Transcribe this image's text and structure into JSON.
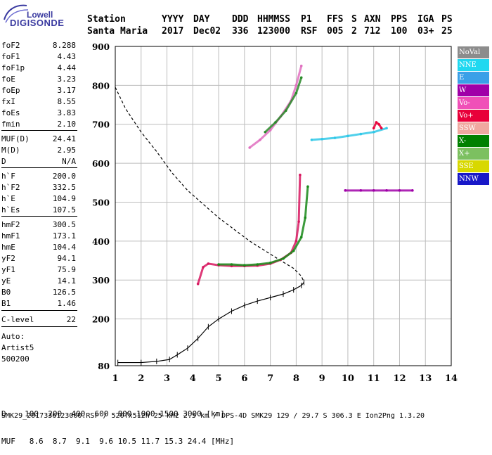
{
  "logo": {
    "brand_top": "Lowell",
    "brand_main": "DIGISONDE"
  },
  "header": {
    "labels": [
      "Station",
      "YYYY",
      "DAY",
      "DDD",
      "HHMMSS",
      "P1",
      "FFS",
      "S",
      "AXN",
      "PPS",
      "IGA",
      "PS"
    ],
    "values": [
      "Santa Maria",
      "2017",
      "Dec02",
      "336",
      "123000",
      "RSF",
      "005",
      "2",
      "712",
      "100",
      "03+",
      "25"
    ]
  },
  "params": [
    {
      "k": "foF2",
      "v": "8.288"
    },
    {
      "k": "foF1",
      "v": "4.43"
    },
    {
      "k": "foF1p",
      "v": "4.44"
    },
    {
      "k": "foE",
      "v": "3.23"
    },
    {
      "k": "foEp",
      "v": "3.17"
    },
    {
      "k": "fxI",
      "v": "8.55"
    },
    {
      "k": "foEs",
      "v": "3.83"
    },
    {
      "k": "fmin",
      "v": "2.10"
    },
    {
      "k": "MUF(D)",
      "v": "24.41"
    },
    {
      "k": "M(D)",
      "v": "2.95"
    },
    {
      "k": "D",
      "v": "N/A"
    },
    {
      "k": "h`F",
      "v": "200.0"
    },
    {
      "k": "h`F2",
      "v": "332.5"
    },
    {
      "k": "h`E",
      "v": "104.9"
    },
    {
      "k": "h`Es",
      "v": "107.5"
    },
    {
      "k": "hmF2",
      "v": "300.5"
    },
    {
      "k": "hmF1",
      "v": "173.1"
    },
    {
      "k": "hmE",
      "v": "104.4"
    },
    {
      "k": "yF2",
      "v": "94.1"
    },
    {
      "k": "yF1",
      "v": "75.9"
    },
    {
      "k": "yE",
      "v": "14.1"
    },
    {
      "k": "B0",
      "v": "126.5"
    },
    {
      "k": "B1",
      "v": "1.46"
    },
    {
      "k": "C-level",
      "v": "22"
    },
    {
      "k": "Auto:",
      "v": ""
    },
    {
      "k": "Artist5",
      "v": ""
    },
    {
      "k": "500200",
      "v": ""
    }
  ],
  "legend": [
    {
      "label": "NoVal",
      "color": "#8c8c8c"
    },
    {
      "label": "NNE",
      "color": "#20d8f0"
    },
    {
      "label": "E",
      "color": "#3aa0e8"
    },
    {
      "label": "W",
      "color": "#a000a8"
    },
    {
      "label": "Vo-",
      "color": "#f050b8"
    },
    {
      "label": "Vo+",
      "color": "#e8003a"
    },
    {
      "label": "SSW",
      "color": "#f0a8a0"
    },
    {
      "label": "X-",
      "color": "#008000"
    },
    {
      "label": "X+",
      "color": "#7cc060"
    },
    {
      "label": "SSE",
      "color": "#d8d800"
    },
    {
      "label": "NNW",
      "color": "#1818c8"
    }
  ],
  "bottom": {
    "d_row": "D    100  200  400  600  800 1000 1500 3000 [km]",
    "muf_row": "MUF   8.6  8.7  9.1  9.6 10.5 11.7 15.3 24.4 [MHz]"
  },
  "footer": "SMK29_2017336123000.RSF / 520fx512h 25 kHz 2.5 km / DPS-4D SMK29 129 / 29.7 S 306.3 E Ion2Png 1.3.20",
  "chart_data": {
    "type": "scatter",
    "xlim": [
      1,
      14
    ],
    "ylim": [
      80,
      900
    ],
    "x_ticks": [
      "1",
      "2",
      "3",
      "4",
      "5",
      "6",
      "7",
      "8",
      "9",
      "10",
      "11",
      "12",
      "13",
      "14"
    ],
    "y_ticks": [
      "80",
      "200",
      "300",
      "400",
      "500",
      "600",
      "700",
      "800",
      "900"
    ],
    "xlabel": "",
    "ylabel": "",
    "series": [
      {
        "color": "#000000",
        "style": "solid",
        "x": [
          1.1,
          2.0,
          2.6,
          3.1,
          3.4,
          3.8,
          4.2,
          4.6,
          5.0,
          5.5,
          6.0,
          6.5,
          7.0,
          7.5,
          7.9,
          8.2,
          8.3
        ],
        "y": [
          88,
          88,
          91,
          96,
          108,
          125,
          150,
          180,
          200,
          220,
          235,
          246,
          255,
          264,
          275,
          286,
          294
        ]
      },
      {
        "color": "#000000",
        "style": "dashed",
        "x": [
          1.0,
          1.4,
          2.0,
          2.6,
          3.2,
          3.8,
          4.4,
          5.0,
          5.6,
          6.2,
          6.8,
          7.4,
          7.9,
          8.2,
          8.3
        ],
        "y": [
          795,
          740,
          680,
          630,
          575,
          530,
          495,
          460,
          430,
          400,
          375,
          350,
          330,
          310,
          295
        ]
      },
      {
        "color": "#d81860",
        "style": "trace",
        "x": [
          4.2,
          4.4,
          4.6,
          5.0,
          5.5,
          6.0,
          6.5,
          7.0,
          7.4,
          7.8,
          8.0,
          8.1,
          8.15
        ],
        "y": [
          290,
          333,
          342,
          338,
          336,
          336,
          337,
          342,
          352,
          370,
          400,
          450,
          570
        ]
      },
      {
        "color": "#1a8a1a",
        "style": "trace",
        "x": [
          5.0,
          5.5,
          6.0,
          6.5,
          7.0,
          7.5,
          7.9,
          8.2,
          8.35,
          8.45
        ],
        "y": [
          340,
          340,
          338,
          340,
          344,
          355,
          375,
          410,
          460,
          540
        ]
      },
      {
        "color": "#e070c0",
        "style": "trace",
        "x": [
          6.2,
          6.6,
          7.0,
          7.4,
          7.8,
          8.0,
          8.2
        ],
        "y": [
          640,
          660,
          685,
          720,
          760,
          800,
          850
        ]
      },
      {
        "color": "#2a8a2a",
        "style": "trace",
        "x": [
          6.8,
          7.2,
          7.6,
          8.0,
          8.2
        ],
        "y": [
          680,
          705,
          735,
          780,
          820
        ]
      },
      {
        "color": "#30c8e8",
        "style": "trace",
        "x": [
          8.6,
          9.0,
          9.5,
          10.0,
          10.5,
          11.0,
          11.5
        ],
        "y": [
          660,
          662,
          665,
          670,
          675,
          680,
          690
        ]
      },
      {
        "color": "#a000a8",
        "style": "trace",
        "x": [
          9.9,
          10.5,
          11.0,
          11.5,
          12.0,
          12.5
        ],
        "y": [
          530,
          530,
          530,
          530,
          530,
          530
        ]
      },
      {
        "color": "#e8003a",
        "style": "trace",
        "x": [
          11.0,
          11.1,
          11.2,
          11.3
        ],
        "y": [
          690,
          705,
          700,
          690
        ]
      }
    ]
  }
}
